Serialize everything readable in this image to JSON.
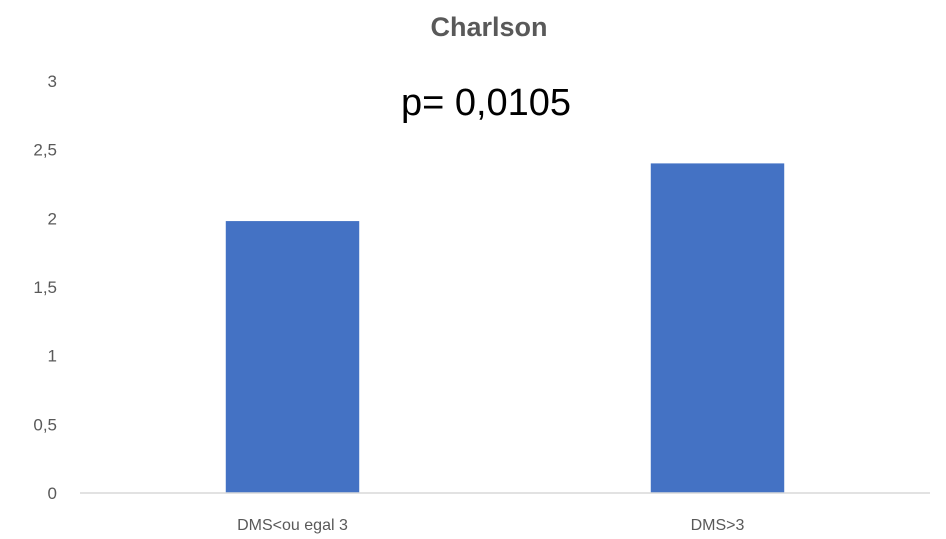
{
  "chart_data": {
    "type": "bar",
    "title": "Charlson",
    "annotation": "p= 0,0105",
    "categories": [
      "DMS<ou egal 3",
      "DMS>3"
    ],
    "values": [
      1.98,
      2.4
    ],
    "xlabel": "",
    "ylabel": "",
    "ylim": [
      0,
      3
    ],
    "yticks": [
      "0",
      "0,5",
      "1",
      "1,5",
      "2",
      "2,5",
      "3"
    ],
    "grid": false,
    "legend": "none",
    "bar_color": "#4472C4",
    "axis_color": "#D9D9D9"
  }
}
